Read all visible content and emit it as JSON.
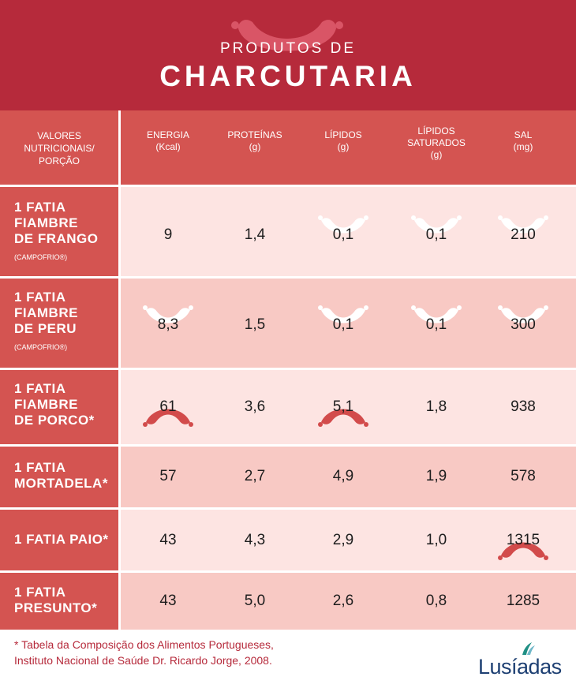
{
  "header": {
    "subtitle": "PRODUTOS DE",
    "title": "CHARCUTARIA"
  },
  "table": {
    "header_label": [
      "VALORES",
      "NUTRICIONAIS/",
      "PORÇÃO"
    ],
    "columns": [
      {
        "line1": "ENERGIA",
        "line2": "(Kcal)"
      },
      {
        "line1": "PROTEÍNAS",
        "line2": "(g)"
      },
      {
        "line1": "LÍPIDOS",
        "line2": "(g)"
      },
      {
        "line1": "LÍPIDOS",
        "line2": "SATURADOS",
        "line3": "(g)"
      },
      {
        "line1": "SAL",
        "line2": "(mg)"
      }
    ],
    "rows": [
      {
        "title": [
          "1 FATIA",
          "FIAMBRE",
          "DE FRANGO"
        ],
        "brand": "(CAMPOFRIO®)",
        "values": [
          "9",
          "1,4",
          "0,1",
          "0,1",
          "210"
        ],
        "markers": [
          "",
          "",
          "low",
          "low",
          "low"
        ]
      },
      {
        "title": [
          "1 FATIA",
          "FIAMBRE",
          "DE PERU"
        ],
        "brand": "(CAMPOFRIO®)",
        "values": [
          "8,3",
          "1,5",
          "0,1",
          "0,1",
          "300"
        ],
        "markers": [
          "low",
          "",
          "low",
          "low",
          "low"
        ]
      },
      {
        "title": [
          "1 FATIA",
          "FIAMBRE",
          "DE PORCO*"
        ],
        "brand": "",
        "values": [
          "61",
          "3,6",
          "5,1",
          "1,8",
          "938"
        ],
        "markers": [
          "high",
          "",
          "high",
          "",
          ""
        ]
      },
      {
        "title": [
          "1 FATIA",
          "MORTADELA*"
        ],
        "brand": "",
        "values": [
          "57",
          "2,7",
          "4,9",
          "1,9",
          "578"
        ],
        "markers": [
          "",
          "",
          "",
          "",
          ""
        ]
      },
      {
        "title": [
          "1 FATIA PAIO*"
        ],
        "brand": "",
        "values": [
          "43",
          "4,3",
          "2,9",
          "1,0",
          "1315"
        ],
        "markers": [
          "",
          "",
          "",
          "",
          "high"
        ]
      },
      {
        "title": [
          "1 FATIA",
          "PRESUNTO*"
        ],
        "brand": "",
        "values": [
          "43",
          "5,0",
          "2,6",
          "0,8",
          "1285"
        ],
        "markers": [
          "",
          "",
          "",
          "",
          ""
        ]
      }
    ]
  },
  "footnote": {
    "line1": "* Tabela da Composição dos Alimentos Portugueses,",
    "line2": "Instituto Nacional de Saúde Dr. Ricardo Jorge, 2008."
  },
  "logo": {
    "text": "Lusíadas"
  },
  "colors": {
    "header_bg": "#b62a3b",
    "label_bg": "#d45451",
    "row_light": "#fde4e2",
    "row_mid": "#f8c9c4",
    "marker_low": "#ffffff",
    "marker_high": "#d24b4b"
  }
}
